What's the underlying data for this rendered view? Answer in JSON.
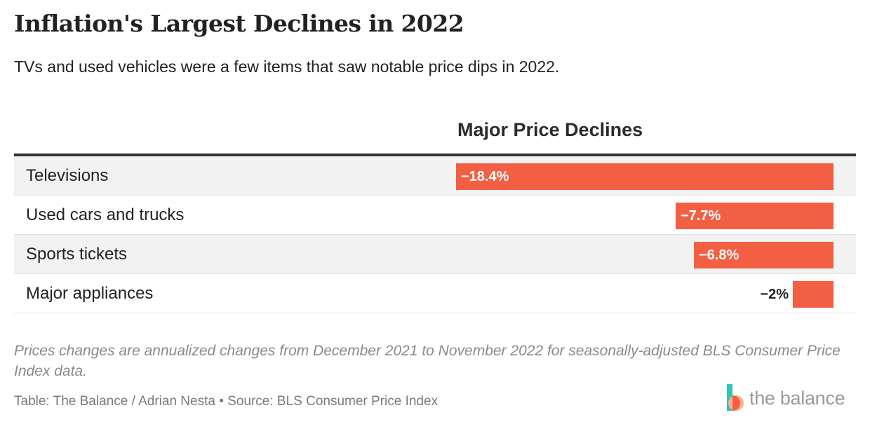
{
  "title": "Inflation's Largest Declines in 2022",
  "subtitle": "TVs and used vehicles were a few items that saw notable price dips in 2022.",
  "column_header": "Major Price Declines",
  "note": "Prices changes are annualized changes from December 2021 to November 2022 for seasonally-adjusted BLS Consumer Price Index data.",
  "credit": "Table: The Balance / Adrian Nesta • Source: BLS Consumer Price Index",
  "logo_text": "the balance",
  "colors": {
    "bar": "#f25f43",
    "row_alt": "#f2f2f2",
    "logo_teal": "#2ec4b6",
    "logo_peach": "#f7b28b",
    "logo_orange": "#f25f43"
  },
  "chart_data": {
    "type": "bar",
    "orientation": "horizontal",
    "categories": [
      "Televisions",
      "Used cars and trucks",
      "Sports tickets",
      "Major appliances"
    ],
    "values": [
      -18.4,
      -7.7,
      -6.8,
      -2
    ],
    "value_labels": [
      "−18.4%",
      "−7.7%",
      "−6.8%",
      "−2%"
    ],
    "unit": "%",
    "xlim": [
      -18.4,
      0
    ]
  }
}
